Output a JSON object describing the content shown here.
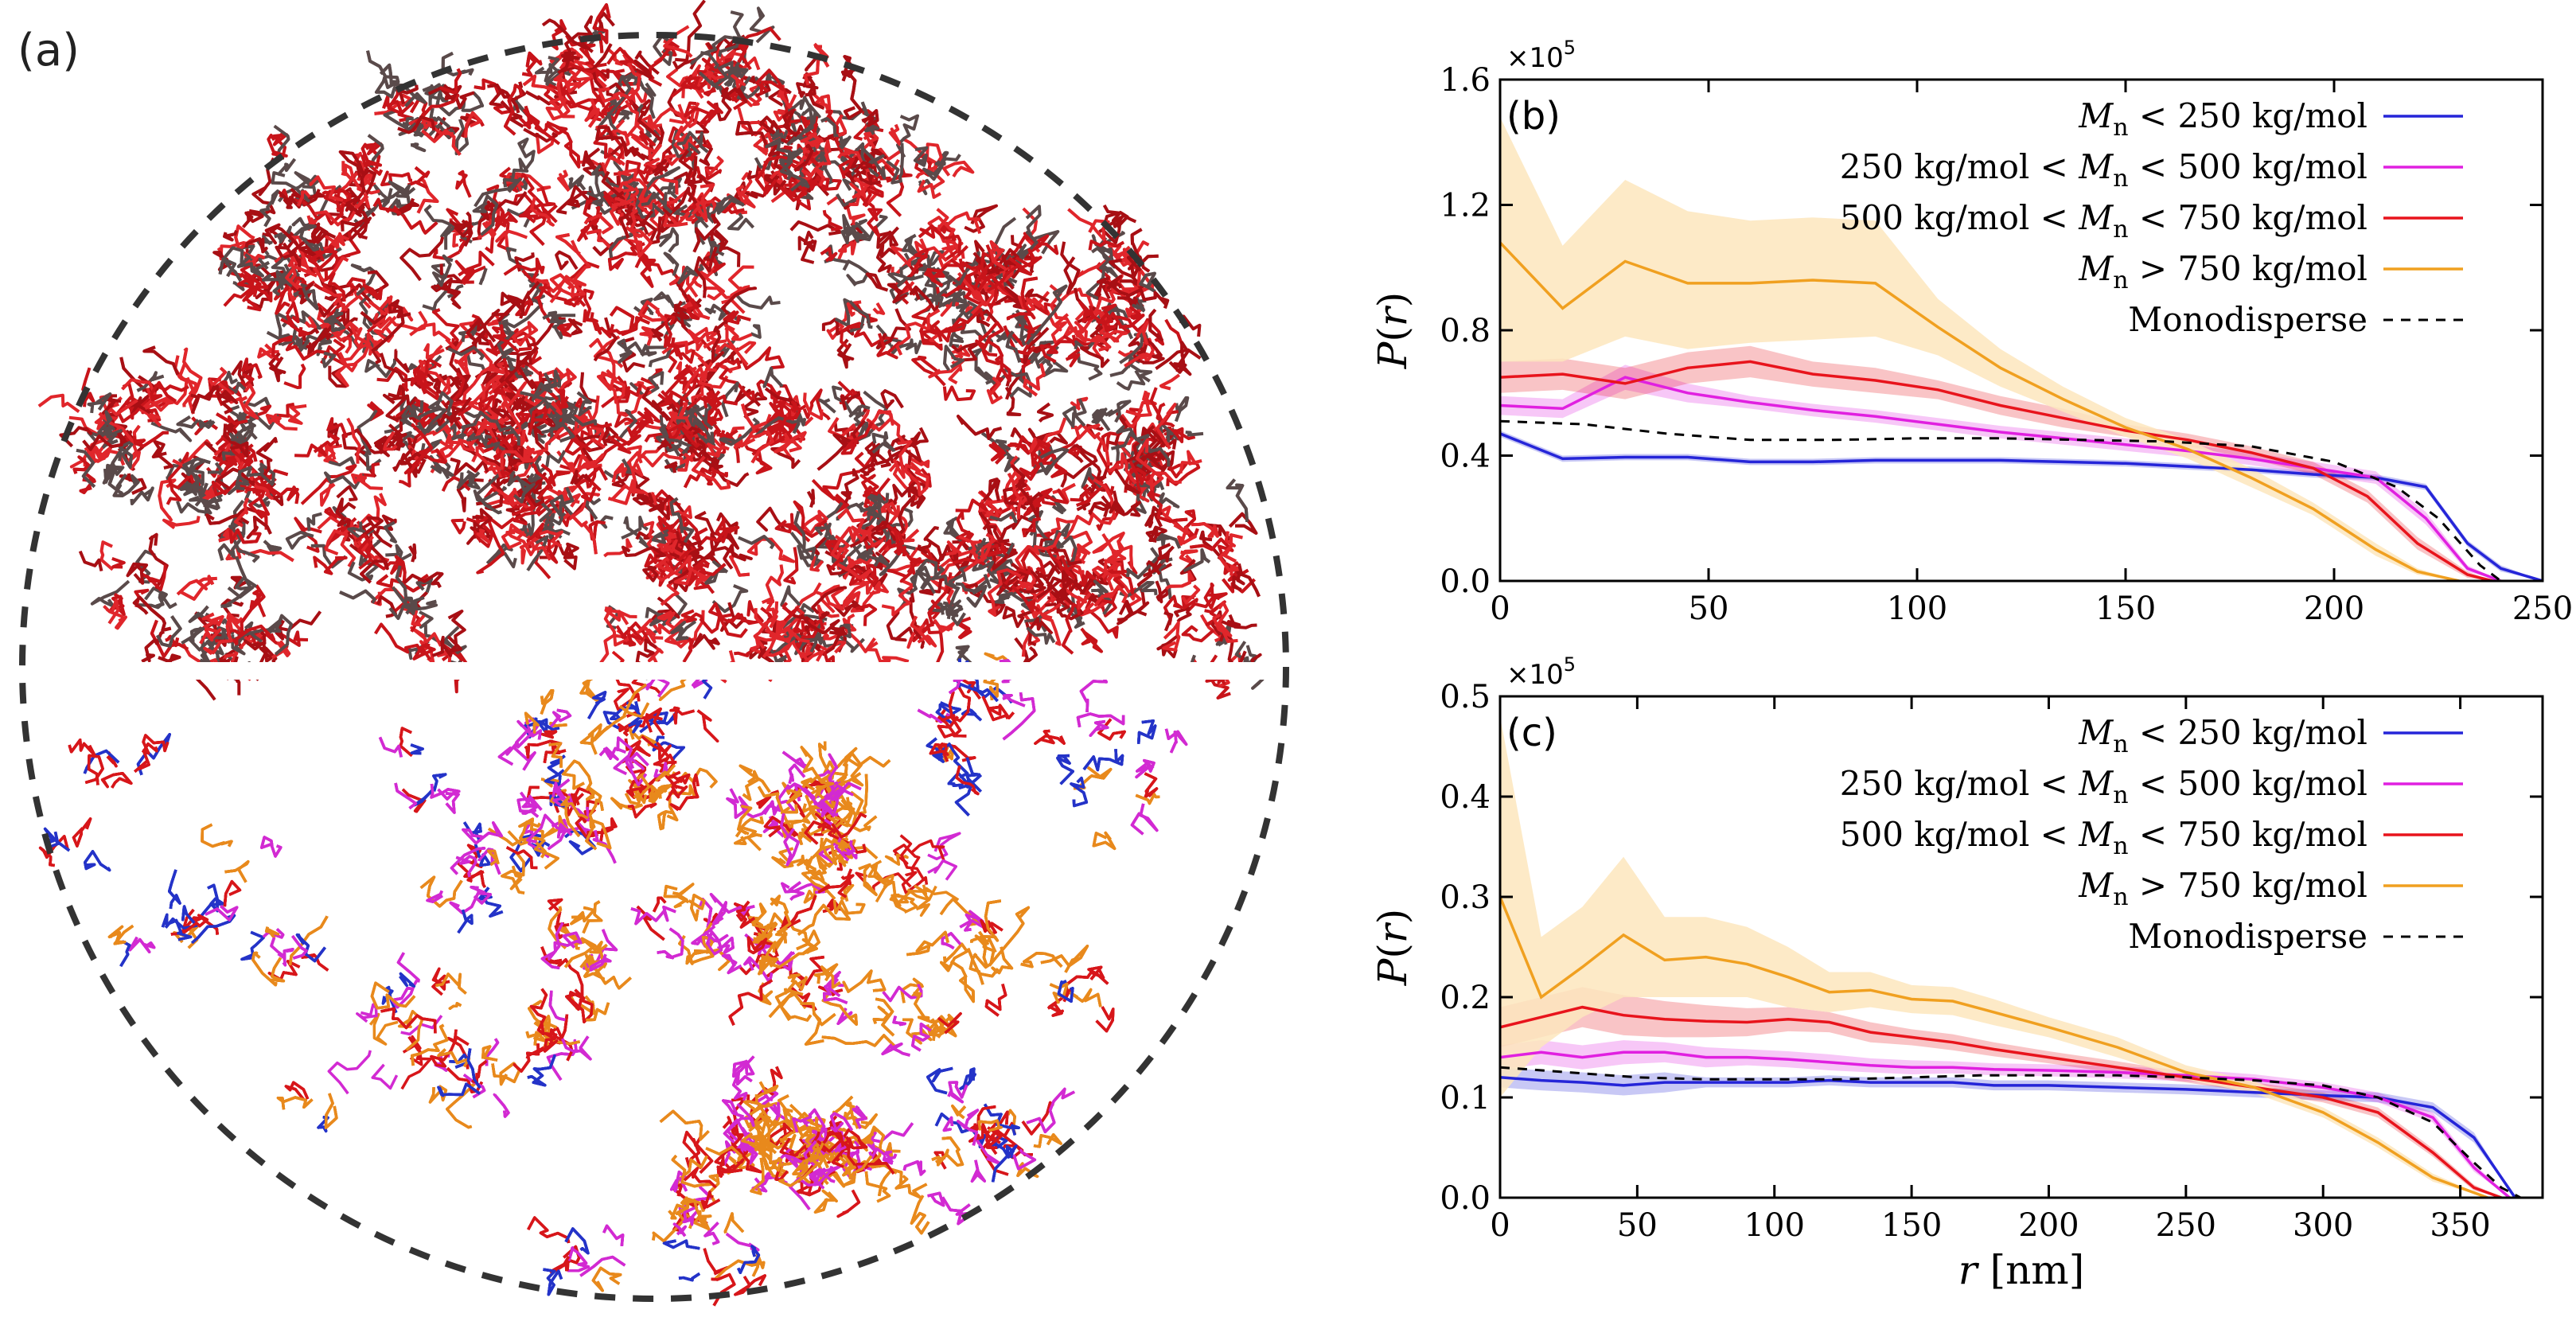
{
  "panel_a": {
    "label": "(a)",
    "upper_hemisphere_color": "#c8141a",
    "upper_shadow_color": "#5a4a4a",
    "lower_colors": [
      "#2433c8",
      "#d22ad2",
      "#d7161a",
      "#e8891c"
    ],
    "boundary_style": "dashed"
  },
  "chart_data": [
    {
      "type": "line",
      "panel_label": "(b)",
      "exponent_label": "×10",
      "exponent_power": "5",
      "ylabel": "P(r)",
      "xlabel": "",
      "xlim": [
        0,
        250
      ],
      "ylim": [
        0,
        1.6
      ],
      "xticks": [
        0,
        50,
        100,
        150,
        200,
        250
      ],
      "yticks": [
        0.0,
        0.4,
        0.8,
        1.2,
        1.6
      ],
      "ytick_labels": [
        "0.0",
        "0.4",
        "0.8",
        "1.2",
        "1.6"
      ],
      "series": [
        {
          "name": "M_n < 250 kg/mol",
          "legend_parts": [
            "",
            "M",
            "n",
            " < 250 kg/mol"
          ],
          "color": "#2525d8",
          "x": [
            0,
            15,
            30,
            45,
            60,
            75,
            90,
            105,
            120,
            135,
            150,
            165,
            180,
            195,
            210,
            222,
            232,
            240,
            250
          ],
          "y": [
            0.47,
            0.39,
            0.395,
            0.395,
            0.38,
            0.38,
            0.385,
            0.385,
            0.385,
            0.38,
            0.375,
            0.365,
            0.355,
            0.34,
            0.33,
            0.3,
            0.12,
            0.04,
            0.0
          ],
          "band": [
            0.01,
            0.01,
            0.01,
            0.01,
            0.01,
            0.01,
            0.01,
            0.01,
            0.01,
            0.01,
            0.01,
            0.01,
            0.01,
            0.01,
            0.01,
            0.01,
            0.01,
            0.01,
            0.0
          ]
        },
        {
          "name": "250 kg/mol < M_n < 500 kg/mol",
          "legend_parts": [
            "250 kg/mol < ",
            "M",
            "n",
            " < 500 kg/mol"
          ],
          "color": "#e020e0",
          "x": [
            0,
            15,
            30,
            45,
            60,
            75,
            90,
            105,
            120,
            135,
            150,
            165,
            180,
            195,
            210,
            222,
            232,
            240
          ],
          "y": [
            0.56,
            0.55,
            0.65,
            0.6,
            0.57,
            0.545,
            0.525,
            0.5,
            0.475,
            0.455,
            0.435,
            0.415,
            0.39,
            0.36,
            0.33,
            0.2,
            0.04,
            0.0
          ],
          "band": [
            0.03,
            0.03,
            0.04,
            0.03,
            0.02,
            0.02,
            0.02,
            0.02,
            0.02,
            0.02,
            0.02,
            0.02,
            0.02,
            0.02,
            0.02,
            0.02,
            0.01,
            0.0
          ]
        },
        {
          "name": "500 kg/mol < M_n < 750 kg/mol",
          "legend_parts": [
            "500 kg/mol < ",
            "M",
            "n",
            " < 750 kg/mol"
          ],
          "color": "#e8141c",
          "x": [
            0,
            15,
            30,
            45,
            60,
            75,
            90,
            105,
            120,
            135,
            150,
            165,
            180,
            195,
            208,
            220,
            232,
            238
          ],
          "y": [
            0.65,
            0.66,
            0.63,
            0.68,
            0.7,
            0.66,
            0.64,
            0.61,
            0.56,
            0.52,
            0.48,
            0.45,
            0.41,
            0.36,
            0.27,
            0.12,
            0.02,
            0.0
          ],
          "band": [
            0.05,
            0.05,
            0.05,
            0.05,
            0.05,
            0.04,
            0.04,
            0.03,
            0.03,
            0.03,
            0.02,
            0.02,
            0.02,
            0.02,
            0.02,
            0.02,
            0.01,
            0.0
          ]
        },
        {
          "name": "M_n > 750 kg/mol",
          "legend_parts": [
            "",
            "M",
            "n",
            " > 750 kg/mol"
          ],
          "color": "#f0a020",
          "band_color": "#fde6bd",
          "x": [
            0,
            15,
            30,
            45,
            60,
            75,
            90,
            105,
            120,
            135,
            150,
            165,
            180,
            195,
            210,
            220,
            230
          ],
          "y": [
            1.08,
            0.87,
            1.02,
            0.95,
            0.95,
            0.96,
            0.95,
            0.81,
            0.68,
            0.58,
            0.49,
            0.42,
            0.33,
            0.23,
            0.1,
            0.03,
            0.0
          ],
          "band_upper": [
            1.48,
            1.07,
            1.28,
            1.18,
            1.15,
            1.16,
            1.15,
            0.9,
            0.74,
            0.62,
            0.52,
            0.45,
            0.36,
            0.25,
            0.12,
            0.04,
            0.0
          ],
          "band_lower": [
            0.7,
            0.7,
            0.78,
            0.74,
            0.76,
            0.77,
            0.78,
            0.72,
            0.62,
            0.54,
            0.46,
            0.39,
            0.3,
            0.21,
            0.08,
            0.02,
            0.0
          ]
        },
        {
          "name": "Monodisperse",
          "legend_parts": [
            "Monodisperse",
            "",
            "",
            ""
          ],
          "color": "#000000",
          "dashed": true,
          "x": [
            0,
            20,
            40,
            60,
            80,
            100,
            120,
            140,
            160,
            180,
            200,
            215,
            225,
            235,
            240
          ],
          "y": [
            0.51,
            0.5,
            0.47,
            0.45,
            0.45,
            0.455,
            0.455,
            0.45,
            0.445,
            0.43,
            0.38,
            0.3,
            0.2,
            0.05,
            0.0
          ]
        }
      ]
    },
    {
      "type": "line",
      "panel_label": "(c)",
      "exponent_label": "×10",
      "exponent_power": "5",
      "ylabel": "P(r)",
      "xlabel": "r  [nm]",
      "xlim": [
        0,
        380
      ],
      "ylim": [
        0,
        0.5
      ],
      "xticks": [
        0,
        50,
        100,
        150,
        200,
        250,
        300,
        350
      ],
      "yticks": [
        0.0,
        0.1,
        0.2,
        0.3,
        0.4,
        0.5
      ],
      "ytick_labels": [
        "0.0",
        "0.1",
        "0.2",
        "0.3",
        "0.4",
        "0.5"
      ],
      "series": [
        {
          "name": "M_n < 250 kg/mol",
          "legend_parts": [
            "",
            "M",
            "n",
            " < 250 kg/mol"
          ],
          "color": "#2525d8",
          "x": [
            0,
            15,
            30,
            45,
            60,
            75,
            90,
            105,
            120,
            135,
            150,
            165,
            180,
            200,
            225,
            250,
            275,
            300,
            320,
            340,
            355,
            370
          ],
          "y": [
            0.12,
            0.117,
            0.115,
            0.112,
            0.115,
            0.115,
            0.115,
            0.115,
            0.117,
            0.115,
            0.115,
            0.115,
            0.112,
            0.112,
            0.11,
            0.108,
            0.105,
            0.102,
            0.1,
            0.09,
            0.06,
            0.0
          ],
          "band": [
            0.01,
            0.01,
            0.01,
            0.01,
            0.01,
            0.005,
            0.005,
            0.005,
            0.005,
            0.005,
            0.005,
            0.005,
            0.005,
            0.005,
            0.005,
            0.005,
            0.005,
            0.005,
            0.005,
            0.005,
            0.005,
            0.0
          ]
        },
        {
          "name": "250 kg/mol < M_n < 500 kg/mol",
          "legend_parts": [
            "250 kg/mol < ",
            "M",
            "n",
            " < 500 kg/mol"
          ],
          "color": "#e020e0",
          "x": [
            0,
            15,
            30,
            45,
            60,
            75,
            90,
            105,
            120,
            135,
            150,
            165,
            180,
            200,
            225,
            250,
            275,
            300,
            320,
            340,
            355,
            368
          ],
          "y": [
            0.14,
            0.145,
            0.14,
            0.145,
            0.145,
            0.14,
            0.14,
            0.138,
            0.135,
            0.132,
            0.13,
            0.13,
            0.128,
            0.127,
            0.125,
            0.122,
            0.118,
            0.11,
            0.1,
            0.08,
            0.03,
            0.0
          ],
          "band": [
            0.012,
            0.012,
            0.012,
            0.012,
            0.01,
            0.01,
            0.008,
            0.008,
            0.008,
            0.007,
            0.007,
            0.006,
            0.006,
            0.006,
            0.006,
            0.006,
            0.005,
            0.005,
            0.005,
            0.005,
            0.004,
            0.0
          ]
        },
        {
          "name": "500 kg/mol < M_n < 750 kg/mol",
          "legend_parts": [
            "500 kg/mol < ",
            "M",
            "n",
            " < 750 kg/mol"
          ],
          "color": "#e8141c",
          "x": [
            0,
            15,
            30,
            45,
            60,
            75,
            90,
            105,
            120,
            135,
            150,
            165,
            180,
            200,
            225,
            250,
            275,
            300,
            320,
            340,
            355,
            365
          ],
          "y": [
            0.17,
            0.18,
            0.19,
            0.182,
            0.178,
            0.176,
            0.175,
            0.178,
            0.175,
            0.165,
            0.16,
            0.155,
            0.148,
            0.14,
            0.13,
            0.12,
            0.11,
            0.1,
            0.085,
            0.045,
            0.01,
            0.0
          ],
          "band": [
            0.02,
            0.02,
            0.02,
            0.02,
            0.018,
            0.016,
            0.014,
            0.012,
            0.01,
            0.01,
            0.008,
            0.008,
            0.007,
            0.006,
            0.006,
            0.005,
            0.005,
            0.005,
            0.005,
            0.004,
            0.003,
            0.0
          ]
        },
        {
          "name": "M_n > 750 kg/mol",
          "legend_parts": [
            "",
            "M",
            "n",
            " > 750 kg/mol"
          ],
          "color": "#f0a020",
          "band_color": "#fde6bd",
          "x": [
            0,
            15,
            30,
            45,
            60,
            75,
            90,
            105,
            120,
            135,
            150,
            165,
            180,
            200,
            225,
            250,
            275,
            300,
            320,
            340,
            360
          ],
          "y": [
            0.3,
            0.2,
            0.23,
            0.262,
            0.237,
            0.24,
            0.233,
            0.22,
            0.205,
            0.207,
            0.198,
            0.196,
            0.185,
            0.17,
            0.15,
            0.125,
            0.11,
            0.085,
            0.055,
            0.02,
            0.0
          ],
          "band_upper": [
            0.48,
            0.26,
            0.29,
            0.34,
            0.28,
            0.28,
            0.27,
            0.25,
            0.225,
            0.225,
            0.212,
            0.21,
            0.198,
            0.18,
            0.16,
            0.132,
            0.116,
            0.09,
            0.06,
            0.024,
            0.0
          ],
          "band_lower": [
            0.1,
            0.15,
            0.18,
            0.2,
            0.2,
            0.2,
            0.2,
            0.19,
            0.185,
            0.19,
            0.184,
            0.182,
            0.172,
            0.16,
            0.14,
            0.118,
            0.104,
            0.08,
            0.05,
            0.016,
            0.0
          ]
        },
        {
          "name": "Monodisperse",
          "legend_parts": [
            "Monodisperse",
            "",
            "",
            ""
          ],
          "color": "#000000",
          "dashed": true,
          "x": [
            0,
            25,
            50,
            75,
            100,
            125,
            150,
            175,
            200,
            225,
            250,
            275,
            300,
            320,
            340,
            355,
            365,
            372
          ],
          "y": [
            0.13,
            0.125,
            0.12,
            0.118,
            0.118,
            0.118,
            0.12,
            0.122,
            0.122,
            0.122,
            0.12,
            0.117,
            0.112,
            0.1,
            0.075,
            0.035,
            0.01,
            0.0
          ]
        }
      ]
    }
  ]
}
